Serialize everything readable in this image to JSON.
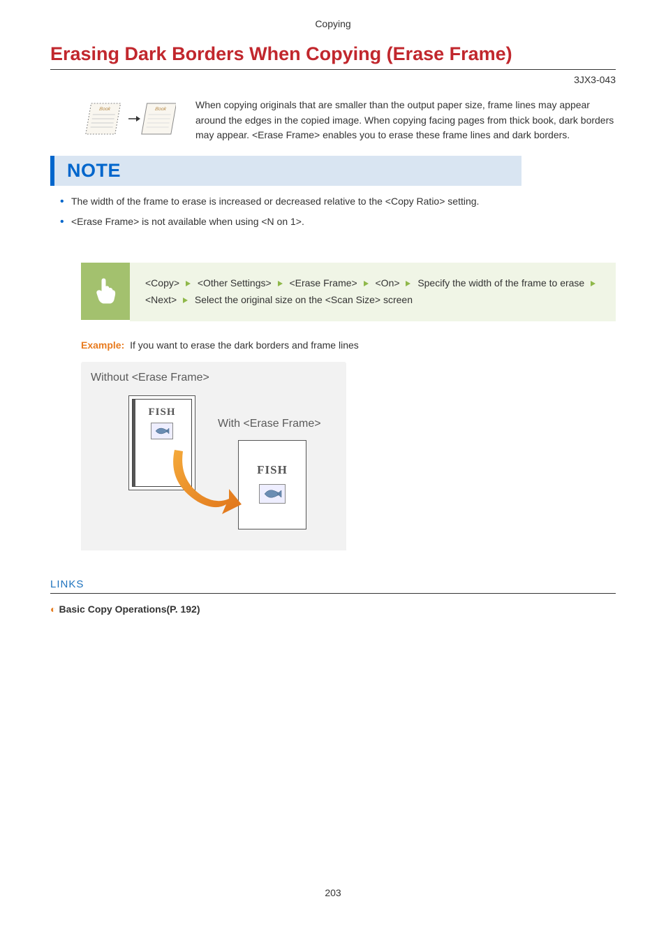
{
  "header": {
    "breadcrumb": "Copying"
  },
  "title": "Erasing Dark Borders When Copying (Erase Frame)",
  "doc_id": "3JX3-043",
  "intro": "When copying originals that are smaller than the output paper size, frame lines may appear around the edges in the copied image. When copying facing pages from thick book, dark borders may appear. <Erase Frame> enables you to erase these frame lines and dark borders.",
  "note": {
    "label": "NOTE",
    "items": [
      "The width of the frame to erase is increased or decreased relative to the <Copy Ratio> setting.",
      "<Erase Frame> is not available when using <N on 1>."
    ]
  },
  "steps": {
    "parts": [
      "<Copy>",
      "<Other Settings>",
      "<Erase Frame>",
      "<On>",
      "Specify the width of the frame to erase",
      "<Next>",
      "Select the original size on the <Scan Size> screen"
    ],
    "arrow_color": "#8fb84a"
  },
  "example": {
    "label": "Example:",
    "text": "If you want to erase the dark borders and frame lines",
    "without_label": "Without <Erase Frame>",
    "with_label": "With <Erase Frame>",
    "fish_text": "FISH",
    "arrow_color": "#e6891f",
    "background_gray": "#f2f2f2"
  },
  "links": {
    "title": "LINKS",
    "items": [
      {
        "label": "Basic Copy Operations(P. 192)"
      }
    ]
  },
  "page_number": "203",
  "colors": {
    "title_red": "#c1272d",
    "note_blue": "#0066cc",
    "note_bg": "#d9e5f2",
    "steps_green": "#a3c16e",
    "steps_bg": "#f0f5e6",
    "example_orange": "#e87b1f",
    "links_blue": "#1e73be"
  },
  "book_illustration": {
    "label": "Book"
  }
}
